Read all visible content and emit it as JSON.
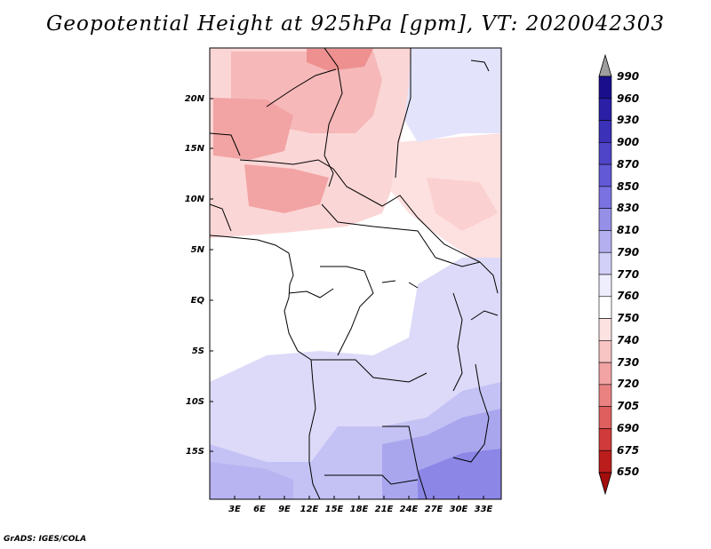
{
  "title": "Geopotential Height at 925hPa [gpm], VT: 2020042303",
  "credit": "GrADS: IGES/COLA",
  "lat_labels": [
    "20N",
    "15N",
    "10N",
    "5N",
    "EQ",
    "5S",
    "10S",
    "15S"
  ],
  "lon_labels": [
    "3E",
    "6E",
    "9E",
    "12E",
    "15E",
    "18E",
    "21E",
    "24E",
    "27E",
    "30E",
    "33E"
  ],
  "colorbar": {
    "levels": [
      "990",
      "960",
      "930",
      "900",
      "870",
      "850",
      "830",
      "810",
      "790",
      "770",
      "760",
      "750",
      "740",
      "730",
      "720",
      "705",
      "690",
      "675",
      "650"
    ],
    "colors": [
      "#9e9e9e",
      "#1a0e8c",
      "#2a1fa5",
      "#3b30b8",
      "#4f45c8",
      "#6259d6",
      "#7a72e0",
      "#958fe8",
      "#b4b0f0",
      "#d2d0f8",
      "#eeeefd",
      "#ffffff",
      "#fde2e2",
      "#f9c4c4",
      "#f2a3a3",
      "#ea8282",
      "#df5e5e",
      "#d03a3a",
      "#bb1d1d",
      "#a30d0d"
    ]
  }
}
